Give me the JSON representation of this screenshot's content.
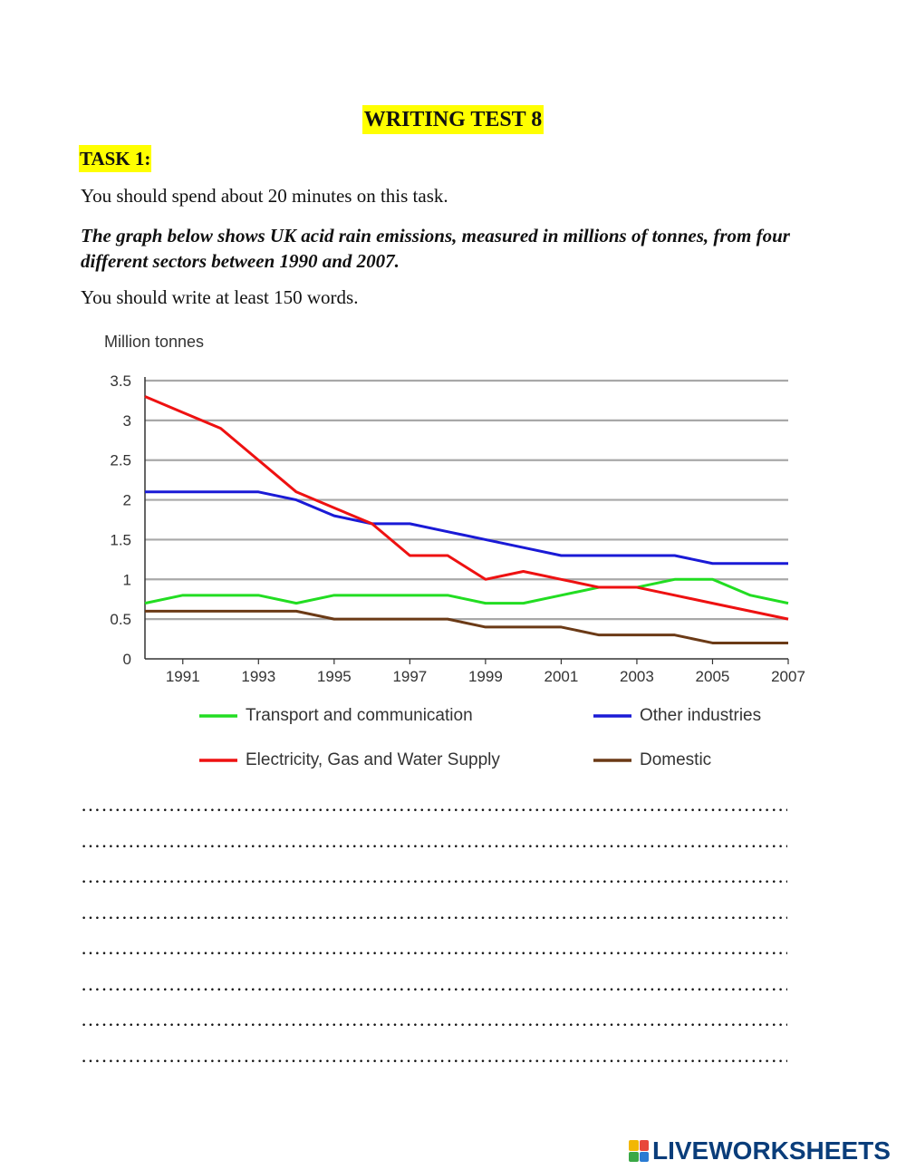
{
  "document": {
    "title": "WRITING TEST 8",
    "task_label": "TASK 1:",
    "instruction_time": "You should spend about 20 minutes on this task.",
    "prompt": "The graph below shows UK acid rain emissions, measured in millions of tonnes, from four different sectors between 1990 and 2007.",
    "instruction_words": "You should write at least 150 words.",
    "answer_line": "…………………………………………………………………………………………………………………………………………………………………………",
    "answer_line_count": 8
  },
  "branding": {
    "name": "LIVEWORKSHEETS",
    "color": "#0a3d7a"
  },
  "chart_data": {
    "type": "line",
    "title": "",
    "ylabel": "Million tonnes",
    "xlabel": "",
    "x": [
      1990,
      1991,
      1992,
      1993,
      1994,
      1995,
      1996,
      1997,
      1998,
      1999,
      2000,
      2001,
      2002,
      2003,
      2004,
      2005,
      2006,
      2007
    ],
    "xticks": [
      1991,
      1993,
      1995,
      1997,
      1999,
      2001,
      2003,
      2005,
      2007
    ],
    "yticks": [
      0,
      0.5,
      1,
      1.5,
      2,
      2.5,
      3,
      3.5
    ],
    "ylim": [
      0,
      3.5
    ],
    "xlim": [
      1990,
      2007
    ],
    "grid": true,
    "legend_position": "bottom",
    "series": [
      {
        "name": "Transport and communication",
        "color": "#22dd22",
        "values": [
          0.7,
          0.8,
          0.8,
          0.8,
          0.7,
          0.8,
          0.8,
          0.8,
          0.8,
          0.7,
          0.7,
          0.8,
          0.9,
          0.9,
          1.0,
          1.0,
          0.8,
          0.7
        ]
      },
      {
        "name": "Other industries",
        "color": "#1a1ad6",
        "values": [
          2.1,
          2.1,
          2.1,
          2.1,
          2.0,
          1.8,
          1.7,
          1.7,
          1.6,
          1.5,
          1.4,
          1.3,
          1.3,
          1.3,
          1.3,
          1.2,
          1.2,
          1.2
        ]
      },
      {
        "name": "Electricity, Gas and Water Supply",
        "color": "#ee1111",
        "values": [
          3.3,
          3.1,
          2.9,
          2.5,
          2.1,
          1.9,
          1.7,
          1.3,
          1.3,
          1.0,
          1.1,
          1.0,
          0.9,
          0.9,
          0.8,
          0.7,
          0.6,
          0.5
        ]
      },
      {
        "name": "Domestic",
        "color": "#6b3a16",
        "values": [
          0.6,
          0.6,
          0.6,
          0.6,
          0.6,
          0.5,
          0.5,
          0.5,
          0.5,
          0.4,
          0.4,
          0.4,
          0.3,
          0.3,
          0.3,
          0.2,
          0.2,
          0.2
        ]
      }
    ]
  }
}
